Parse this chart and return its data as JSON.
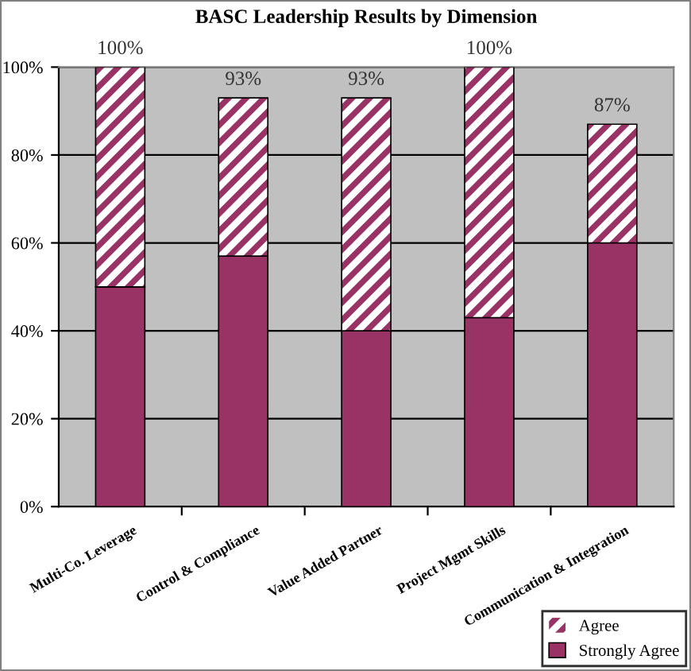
{
  "chart_data": {
    "type": "bar",
    "stacked": true,
    "title": "BASC Leadership Results by Dimension",
    "categories": [
      "Multi-Co. Leverage",
      "Control & Compliance",
      "Value Added Partner",
      "Project Mgmt Skills",
      "Communication & Integration"
    ],
    "series": [
      {
        "name": "Strongly Agree",
        "color": "#993366",
        "values": [
          50,
          57,
          40,
          43,
          60
        ]
      },
      {
        "name": "Agree",
        "color": "#993366",
        "values": [
          50,
          36,
          53,
          57,
          27
        ]
      }
    ],
    "totals": [
      "100%",
      "93%",
      "93%",
      "100%",
      "87%"
    ],
    "ylim": [
      0,
      100
    ],
    "yticks": [
      {
        "value": 0,
        "label": "0%"
      },
      {
        "value": 20,
        "label": "20%"
      },
      {
        "value": 40,
        "label": "40%"
      },
      {
        "value": 60,
        "label": "60%"
      },
      {
        "value": 80,
        "label": "80%"
      },
      {
        "value": 100,
        "label": "100%"
      }
    ],
    "grid": "y",
    "legend": "bottom right"
  }
}
